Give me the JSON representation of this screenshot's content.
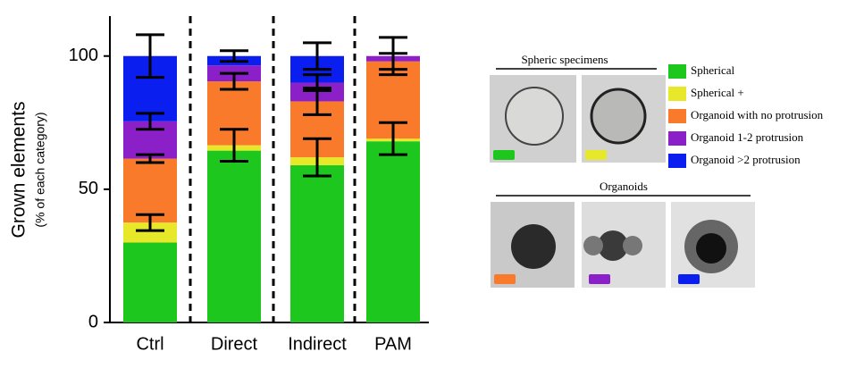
{
  "chart_data": {
    "type": "stacked_bar",
    "y_label": "Grown elements",
    "y_sublabel": "(% of each category)",
    "categories": [
      "Ctrl",
      "Direct",
      "Indirect",
      "PAM"
    ],
    "series": [
      {
        "name": "Spherical",
        "color": "#1ec71e",
        "values": [
          30,
          64.5,
          59,
          68
        ],
        "errors": [
          null,
          null,
          null,
          null
        ]
      },
      {
        "name": "Spherical +",
        "color": "#e8e82a",
        "values": [
          7.5,
          2,
          3,
          1
        ],
        "errors": [
          3,
          6,
          7,
          6
        ]
      },
      {
        "name": "Organoid with no protrusion",
        "color": "#f97a2a",
        "values": [
          24,
          24,
          21,
          29
        ],
        "errors": [
          1.5,
          3,
          5,
          3
        ]
      },
      {
        "name": "Organoid 1-2 protrusion",
        "color": "#8b1fc8",
        "values": [
          14,
          6,
          7,
          2
        ],
        "errors": [
          3,
          null,
          3,
          7
        ]
      },
      {
        "name": "Organoid >2 protrusion",
        "color": "#0a1ef0",
        "values": [
          24.5,
          3.5,
          10,
          0
        ],
        "errors": [
          8,
          2,
          5,
          null
        ]
      }
    ],
    "ylim": [
      0,
      115
    ],
    "yticks": [
      0,
      50,
      100
    ],
    "image_groups": [
      {
        "title": "Spheric specimens"
      },
      {
        "title": "Organoids"
      }
    ]
  }
}
